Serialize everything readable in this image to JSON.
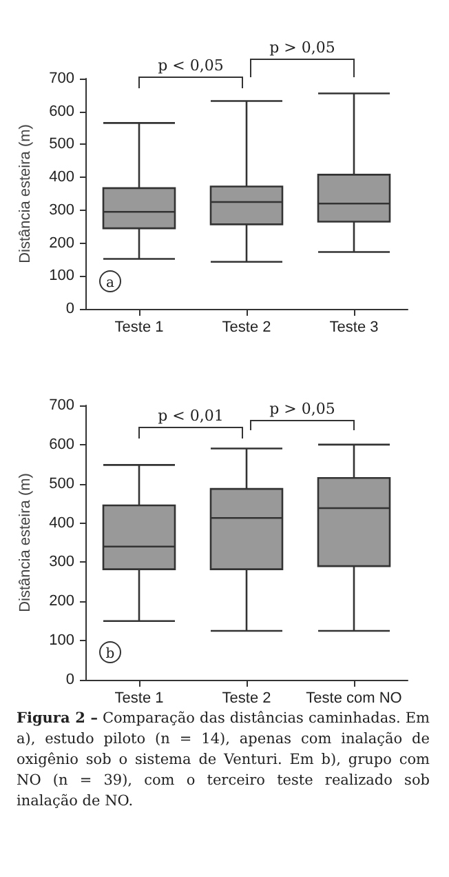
{
  "chart_data": [
    {
      "type": "box",
      "ylabel": "Distância esteira (m)",
      "categories": [
        "Teste 1",
        "Teste 2",
        "Teste 3"
      ],
      "color": "#999999",
      "ylim": [
        0,
        700
      ],
      "yticks": [
        0,
        100,
        200,
        300,
        400,
        500,
        600,
        700
      ],
      "grid": false,
      "boxes": [
        {
          "low": 152,
          "q1": 245,
          "median": 295,
          "q3": 367,
          "high": 565
        },
        {
          "low": 143,
          "q1": 257,
          "median": 325,
          "q3": 372,
          "high": 632
        },
        {
          "low": 173,
          "q1": 265,
          "median": 320,
          "q3": 408,
          "high": 655
        }
      ],
      "annotations": [
        "a",
        "p < 0,05",
        "p > 0,05"
      ]
    },
    {
      "type": "box",
      "ylabel": "Distância esteira (m)",
      "categories": [
        "Teste 1",
        "Teste 2",
        "Teste com NO"
      ],
      "color": "#999999",
      "ylim": [
        0,
        700
      ],
      "yticks": [
        0,
        100,
        200,
        300,
        400,
        500,
        600,
        700
      ],
      "grid": false,
      "boxes": [
        {
          "low": 150,
          "q1": 282,
          "median": 340,
          "q3": 445,
          "high": 548
        },
        {
          "low": 125,
          "q1": 282,
          "median": 413,
          "q3": 487,
          "high": 590
        },
        {
          "low": 125,
          "q1": 290,
          "median": 438,
          "q3": 515,
          "high": 600
        }
      ],
      "annotations": [
        "b",
        "p < 0,01",
        "p > 0,05",
        "Figura 2 –",
        "Comparação das distâncias caminhadas. Em a), estudo piloto (n = 14), apenas com inalação de oxigênio sob o sistema de Venturi. Em b), grupo com NO (n = 39), com o terceiro teste realizado sob inalação de NO."
      ]
    }
  ]
}
